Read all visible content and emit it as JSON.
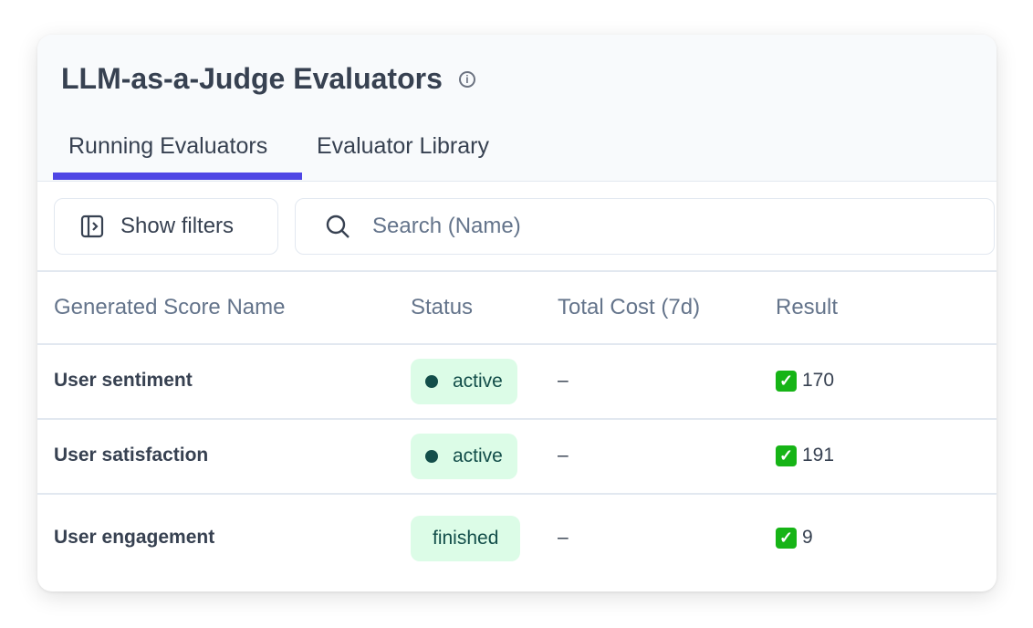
{
  "header": {
    "title": "LLM-as-a-Judge Evaluators",
    "info_icon": "info-icon"
  },
  "tabs": [
    {
      "label": "Running Evaluators",
      "active": true
    },
    {
      "label": "Evaluator Library",
      "active": false
    }
  ],
  "toolbar": {
    "show_filters_label": "Show filters",
    "search_placeholder": "Search (Name)",
    "search_value": ""
  },
  "table": {
    "columns": [
      "Generated Score Name",
      "Status",
      "Total Cost (7d)",
      "Result"
    ],
    "rows": [
      {
        "name": "User sentiment",
        "status": "active",
        "cost": "–",
        "result": "170"
      },
      {
        "name": "User satisfaction",
        "status": "active",
        "cost": "–",
        "result": "191"
      },
      {
        "name": "User engagement",
        "status": "finished",
        "cost": "–",
        "result": "9"
      }
    ]
  },
  "colors": {
    "accent": "#4f46e5",
    "badge_bg": "#dcfce7",
    "badge_text": "#134e4a",
    "check": "#16b416"
  }
}
